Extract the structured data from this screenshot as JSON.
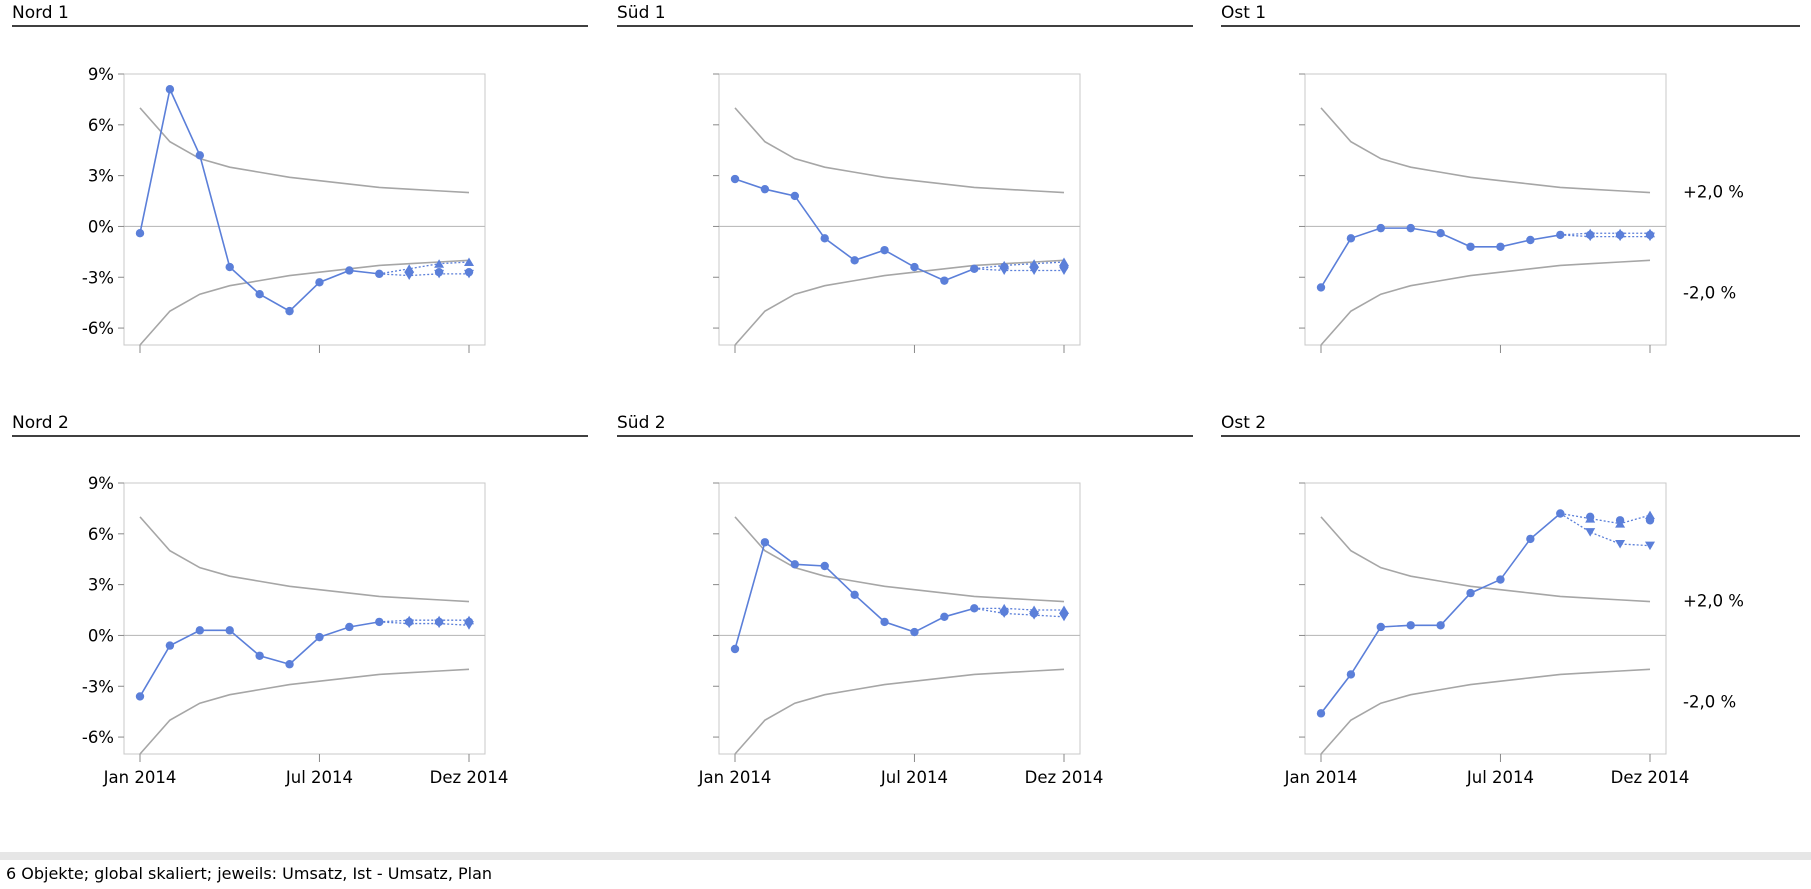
{
  "footer": {
    "text": "6 Objekte; global skaliert; jeweils: Umsatz, Ist - Umsatz, Plan"
  },
  "colors": {
    "actual": "#5b7fd9",
    "reference": "#a6a6a6",
    "zero_line": "#bdbdbd",
    "frame": "#c8c8c8",
    "title_rule": "#000000"
  },
  "chart_data": {
    "type": "line",
    "layout": "small-multiples",
    "x_tick_labels": [
      "Jan 2014",
      "Jul 2014",
      "Dez 2014"
    ],
    "x_tick_positions": [
      "2014-01",
      "2014-07",
      "2014-12"
    ],
    "y_tick_labels": [
      "9%",
      "6%",
      "3%",
      "0%",
      "-3%",
      "-6%"
    ],
    "ylim": [
      -7,
      9
    ],
    "reference_labels": [
      "+2,0 %",
      "-2,0 %"
    ],
    "months": [
      "2014-01",
      "2014-02",
      "2014-03",
      "2014-04",
      "2014-05",
      "2014-06",
      "2014-07",
      "2014-08",
      "2014-09",
      "2014-10",
      "2014-11",
      "2014-12"
    ],
    "reference_curves": {
      "upper": [
        7.0,
        5.0,
        4.0,
        3.5,
        3.2,
        2.9,
        2.7,
        2.5,
        2.3,
        2.2,
        2.1,
        2.0
      ],
      "lower": [
        -7.0,
        -5.0,
        -4.0,
        -3.5,
        -3.2,
        -2.9,
        -2.7,
        -2.5,
        -2.3,
        -2.2,
        -2.1,
        -2.0
      ]
    },
    "panels": [
      {
        "title": "Nord 1",
        "actual": [
          -0.4,
          8.1,
          4.2,
          -2.4,
          -4.0,
          -5.0,
          -3.3,
          -2.6,
          -2.8,
          -2.7,
          -2.7,
          -2.7
        ],
        "proj_up": [
          -2.5,
          -2.2,
          -2.1
        ],
        "proj_down": [
          -2.9,
          -2.8,
          -2.8
        ]
      },
      {
        "title": "Süd 1",
        "actual": [
          2.8,
          2.2,
          1.8,
          -0.7,
          -2.0,
          -1.4,
          -2.4,
          -3.2,
          -2.5,
          -2.4,
          -2.4,
          -2.4
        ],
        "proj_up": [
          -2.3,
          -2.2,
          -2.1
        ],
        "proj_down": [
          -2.6,
          -2.6,
          -2.6
        ]
      },
      {
        "title": "Ost 1",
        "actual": [
          -3.6,
          -0.7,
          -0.1,
          -0.1,
          -0.4,
          -1.2,
          -1.2,
          -0.8,
          -0.5,
          -0.5,
          -0.5,
          -0.5
        ],
        "proj_up": [
          -0.4,
          -0.4,
          -0.4
        ],
        "proj_down": [
          -0.6,
          -0.6,
          -0.6
        ]
      },
      {
        "title": "Nord 2",
        "actual": [
          -3.6,
          -0.6,
          0.3,
          0.3,
          -1.2,
          -1.7,
          -0.1,
          0.5,
          0.8,
          0.8,
          0.8,
          0.8
        ],
        "proj_up": [
          0.9,
          0.9,
          0.9
        ],
        "proj_down": [
          0.7,
          0.7,
          0.6
        ]
      },
      {
        "title": "Süd 2",
        "actual": [
          -0.8,
          5.5,
          4.2,
          4.1,
          2.4,
          0.8,
          0.2,
          1.1,
          1.6,
          1.4,
          1.3,
          1.3
        ],
        "proj_up": [
          1.6,
          1.5,
          1.5
        ],
        "proj_down": [
          1.3,
          1.2,
          1.1
        ]
      },
      {
        "title": "Ost 2",
        "actual": [
          -4.6,
          -2.3,
          0.5,
          0.6,
          0.6,
          2.5,
          3.3,
          5.7,
          7.2,
          7.0,
          6.8,
          6.8
        ],
        "proj_up": [
          6.9,
          6.6,
          7.1
        ],
        "proj_down": [
          6.1,
          5.4,
          5.3
        ]
      }
    ]
  }
}
